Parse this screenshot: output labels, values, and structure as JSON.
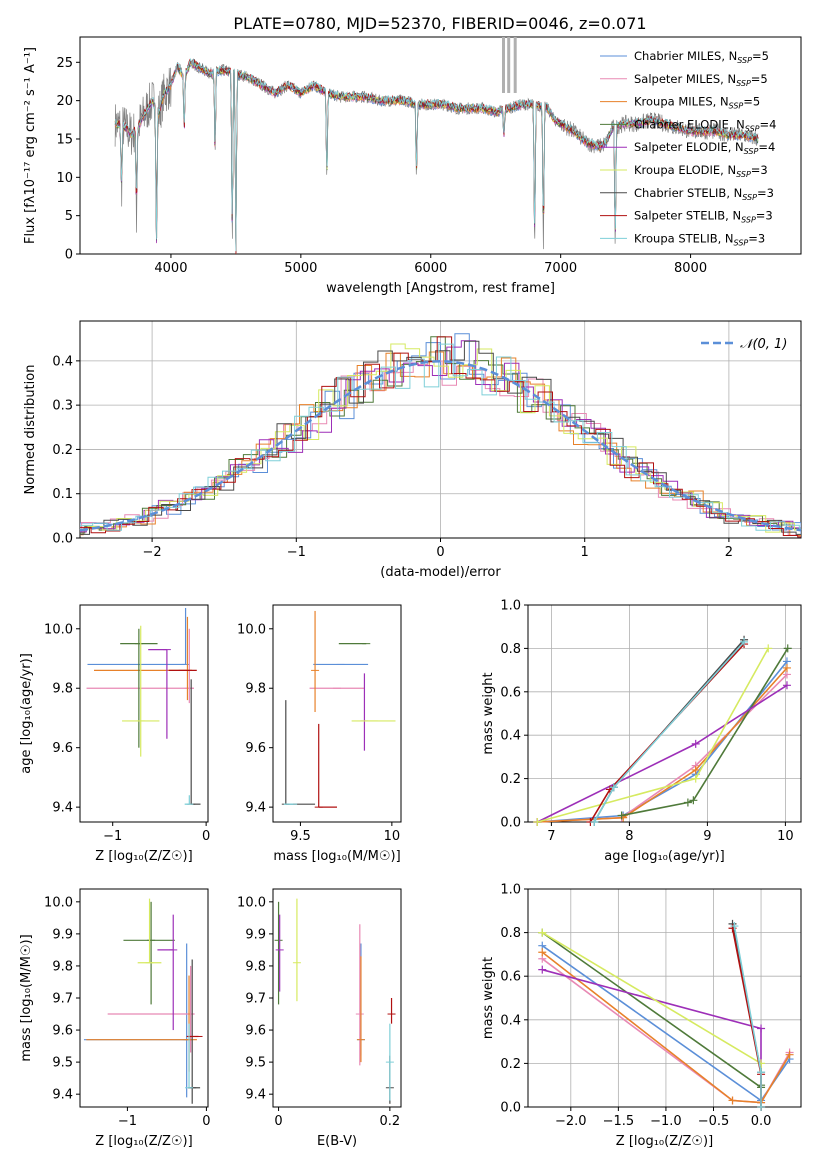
{
  "figure_title": "PLATE=0780, MJD=52370, FIBERID=0046, z=0.071",
  "colors": {
    "series": [
      "#5b8fd8",
      "#e889b4",
      "#e7812a",
      "#4f7a3a",
      "#9d2fb8",
      "#d6ea60",
      "#4a4a4a",
      "#b01010",
      "#7ecfd8"
    ],
    "data": "#808080",
    "gaussian": "#5b8fd8",
    "grid": "#b0b0b0"
  },
  "chart_data": [
    {
      "id": "spectrum",
      "type": "line",
      "title": "PLATE=0780, MJD=52370, FIBERID=0046, z=0.071",
      "xlabel": "wavelength [Angstrom, rest frame]",
      "ylabel": "Flux [fλ10⁻¹⁷ erg cm⁻² s⁻¹ A⁻¹]",
      "xlim": [
        3300,
        8850
      ],
      "ylim": [
        0,
        28.3
      ],
      "xticks": [
        4000,
        5000,
        6000,
        7000,
        8000
      ],
      "yticks": [
        0,
        5,
        10,
        15,
        20,
        25
      ],
      "grid": false,
      "legend_position": "top-right",
      "legend": [
        {
          "label": "Chabrier MILES, N",
          "sub": "SSP",
          "tail": "=5"
        },
        {
          "label": "Salpeter MILES, N",
          "sub": "SSP",
          "tail": "=5"
        },
        {
          "label": "Kroupa MILES, N",
          "sub": "SSP",
          "tail": "=5"
        },
        {
          "label": "Chabrier ELODIE, N",
          "sub": "SSP",
          "tail": "=4"
        },
        {
          "label": "Salpeter ELODIE, N",
          "sub": "SSP",
          "tail": "=4"
        },
        {
          "label": "Kroupa ELODIE, N",
          "sub": "SSP",
          "tail": "=3"
        },
        {
          "label": "Chabrier STELIB, N",
          "sub": "SSP",
          "tail": "=3"
        },
        {
          "label": "Salpeter STELIB, N",
          "sub": "SSP",
          "tail": "=3"
        },
        {
          "label": "Kroupa STELIB, N",
          "sub": "SSP",
          "tail": "=3"
        }
      ],
      "continuum": [
        [
          3570,
          17
        ],
        [
          3650,
          16.5
        ],
        [
          3700,
          15.5
        ],
        [
          3760,
          17
        ],
        [
          3820,
          19
        ],
        [
          3860,
          20
        ],
        [
          3900,
          18
        ],
        [
          3950,
          21
        ],
        [
          4000,
          22
        ],
        [
          4050,
          24.5
        ],
        [
          4100,
          23
        ],
        [
          4150,
          25
        ],
        [
          4200,
          24.5
        ],
        [
          4300,
          23.5
        ],
        [
          4400,
          24
        ],
        [
          4500,
          23.5
        ],
        [
          4600,
          23
        ],
        [
          4700,
          22
        ],
        [
          4800,
          21
        ],
        [
          4900,
          22
        ],
        [
          5000,
          21
        ],
        [
          5100,
          22
        ],
        [
          5200,
          21
        ],
        [
          5300,
          20.5
        ],
        [
          5400,
          20.5
        ],
        [
          5500,
          20.5
        ],
        [
          5600,
          20
        ],
        [
          5700,
          20
        ],
        [
          5800,
          20
        ],
        [
          5900,
          19.5
        ],
        [
          6000,
          19.5
        ],
        [
          6100,
          19.5
        ],
        [
          6200,
          19
        ],
        [
          6300,
          19
        ],
        [
          6400,
          19
        ],
        [
          6500,
          18.5
        ],
        [
          6600,
          19
        ],
        [
          6700,
          19.5
        ],
        [
          6800,
          19.5
        ],
        [
          6900,
          19
        ],
        [
          6950,
          17.5
        ],
        [
          7000,
          17
        ],
        [
          7100,
          16
        ],
        [
          7200,
          14.5
        ],
        [
          7300,
          14
        ],
        [
          7350,
          14.5
        ],
        [
          7400,
          16.5
        ],
        [
          7500,
          17
        ],
        [
          7600,
          17
        ],
        [
          7700,
          17.5
        ],
        [
          7800,
          17
        ],
        [
          7900,
          16.5
        ],
        [
          8000,
          16
        ],
        [
          8100,
          16
        ],
        [
          8200,
          16
        ],
        [
          8300,
          15.5
        ],
        [
          8400,
          15.5
        ],
        [
          8520,
          15
        ]
      ],
      "absorption_lines": [
        [
          3550,
          13
        ],
        [
          3620,
          8
        ],
        [
          3735,
          4.8
        ],
        [
          3889,
          0
        ],
        [
          4102,
          15
        ],
        [
          4340,
          12
        ],
        [
          4472,
          0
        ],
        [
          4500,
          0
        ],
        [
          5200,
          9
        ],
        [
          5890,
          9.5
        ],
        [
          6563,
          15
        ],
        [
          6800,
          0
        ],
        [
          6867,
          0
        ],
        [
          7420,
          0
        ]
      ],
      "sky_lines": [
        6560,
        6600,
        6650
      ]
    },
    {
      "id": "residuals",
      "type": "step-histogram",
      "xlabel": "(data-model)/error",
      "ylabel": "Normed distribution",
      "xlim": [
        -2.5,
        2.5
      ],
      "ylim": [
        0,
        0.49
      ],
      "xticks": [
        -2,
        -1,
        0,
        1,
        2
      ],
      "yticks": [
        0,
        0.1,
        0.2,
        0.3,
        0.4
      ],
      "grid": true,
      "legend_position": "top-right",
      "legend": "𝒩(0, 1)",
      "bin_width": 0.1
    },
    {
      "id": "age_vs_Z",
      "type": "errorbar",
      "xlabel": "Z [log₁₀(Z/Z☉)]",
      "ylabel": "age  [log₁₀(age/yr)]",
      "xlim": [
        -1.35,
        0.02
      ],
      "ylim": [
        9.35,
        10.08
      ],
      "xticks": [
        -1,
        0
      ],
      "yticks": [
        9.4,
        9.6,
        9.8,
        10.0
      ],
      "grid": false,
      "points": [
        {
          "x": -0.22,
          "y": 9.88,
          "xerr": [
            1.05,
            0.0
          ],
          "yerr": [
            0.0,
            0.19
          ]
        },
        {
          "x": -0.18,
          "y": 9.8,
          "xerr": [
            1.1,
            0.05
          ],
          "yerr": [
            0.05,
            0.2
          ]
        },
        {
          "x": -0.2,
          "y": 9.86,
          "xerr": [
            1.0,
            0.05
          ],
          "yerr": [
            0.1,
            0.18
          ]
        },
        {
          "x": -0.72,
          "y": 9.95,
          "xerr": [
            0.2,
            0.2
          ],
          "yerr": [
            0.35,
            0.05
          ]
        },
        {
          "x": -0.42,
          "y": 9.93,
          "xerr": [
            0.2,
            0.0
          ],
          "yerr": [
            0.3,
            0.0
          ]
        },
        {
          "x": -0.7,
          "y": 9.69,
          "xerr": [
            0.2,
            0.2
          ],
          "yerr": [
            0.12,
            0.32
          ]
        },
        {
          "x": -0.16,
          "y": 9.41,
          "xerr": [
            0.0,
            0.1
          ],
          "yerr": [
            0.0,
            0.42
          ]
        },
        {
          "x": -0.25,
          "y": 9.86,
          "xerr": [
            0.15,
            0.15
          ],
          "yerr": [
            0.0,
            0.0
          ]
        },
        {
          "x": -0.18,
          "y": 9.41,
          "xerr": [
            0.05,
            0.0
          ],
          "yerr": [
            0.0,
            0.03
          ]
        }
      ]
    },
    {
      "id": "age_vs_mass",
      "type": "errorbar",
      "xlabel": "mass [log₁₀(M/M☉)]",
      "ylabel": "",
      "xlim": [
        9.35,
        10.05
      ],
      "ylim": [
        9.35,
        10.08
      ],
      "xticks": [
        9.5,
        10.0
      ],
      "yticks": [
        9.4,
        9.6,
        9.8,
        10.0
      ],
      "grid": false,
      "points": [
        {
          "x": 9.72,
          "y": 9.88,
          "xerr": [
            0.15,
            0.15
          ],
          "yerr": [
            0.0,
            0.0
          ]
        },
        {
          "x": 9.7,
          "y": 9.8,
          "xerr": [
            0.15,
            0.15
          ],
          "yerr": [
            0.0,
            0.0
          ]
        },
        {
          "x": 9.58,
          "y": 9.86,
          "xerr": [
            0.0,
            0.0
          ],
          "yerr": [
            0.14,
            0.2
          ]
        },
        {
          "x": 9.86,
          "y": 9.95,
          "xerr": [
            0.15,
            0.0
          ],
          "yerr": [
            0.0,
            0.0
          ]
        },
        {
          "x": 9.85,
          "y": 9.69,
          "xerr": [
            0.0,
            0.0
          ],
          "yerr": [
            0.1,
            0.16
          ]
        },
        {
          "x": 9.9,
          "y": 9.69,
          "xerr": [
            0.12,
            0.12
          ],
          "yerr": [
            0.0,
            0.0
          ]
        },
        {
          "x": 9.42,
          "y": 9.41,
          "xerr": [
            0.0,
            0.16
          ],
          "yerr": [
            0.0,
            0.35
          ]
        },
        {
          "x": 9.6,
          "y": 9.4,
          "xerr": [
            0.0,
            0.1
          ],
          "yerr": [
            0.0,
            0.28
          ]
        },
        {
          "x": 9.46,
          "y": 9.41,
          "xerr": [
            0.05,
            0.0
          ],
          "yerr": [
            0.0,
            0.0
          ]
        }
      ]
    },
    {
      "id": "weight_vs_age",
      "type": "line",
      "xlabel": "age  [log₁₀(age/yr)]",
      "ylabel": "mass weight",
      "xlim": [
        6.7,
        10.2
      ],
      "ylim": [
        0,
        1.0
      ],
      "xticks": [
        7,
        8,
        9,
        10
      ],
      "yticks": [
        0,
        0.2,
        0.4,
        0.6,
        0.8,
        1.0
      ],
      "grid": true,
      "series": [
        {
          "x": [
            6.82,
            7.92,
            8.85,
            10.02
          ],
          "y": [
            0.0,
            0.03,
            0.22,
            0.74
          ]
        },
        {
          "x": [
            6.82,
            7.9,
            8.85,
            10.02
          ],
          "y": [
            0.0,
            0.02,
            0.26,
            0.68
          ]
        },
        {
          "x": [
            6.82,
            7.92,
            8.85,
            10.02
          ],
          "y": [
            0.0,
            0.02,
            0.24,
            0.71
          ]
        },
        {
          "x": [
            7.9,
            8.75,
            8.82,
            10.03
          ],
          "y": [
            0.03,
            0.09,
            0.1,
            0.8
          ]
        },
        {
          "x": [
            6.82,
            8.85,
            10.02
          ],
          "y": [
            0.0,
            0.36,
            0.63
          ]
        },
        {
          "x": [
            6.82,
            8.85,
            9.78
          ],
          "y": [
            0.0,
            0.2,
            0.8
          ]
        },
        {
          "x": [
            7.55,
            7.8,
            9.47
          ],
          "y": [
            0.0,
            0.16,
            0.84
          ]
        },
        {
          "x": [
            7.5,
            7.75,
            9.47
          ],
          "y": [
            0.0,
            0.15,
            0.82
          ]
        },
        {
          "x": [
            7.55,
            7.8,
            9.47
          ],
          "y": [
            0.0,
            0.16,
            0.83
          ]
        }
      ]
    },
    {
      "id": "mass_vs_Z",
      "type": "errorbar",
      "xlabel": "Z [log₁₀(Z/Z☉)]",
      "ylabel": "mass [log₁₀(M/M☉)]",
      "xlim": [
        -1.6,
        0.02
      ],
      "ylim": [
        9.36,
        10.04
      ],
      "xticks": [
        -1,
        0
      ],
      "yticks": [
        9.4,
        9.5,
        9.6,
        9.7,
        9.8,
        9.9,
        10.0
      ],
      "grid": false,
      "points": [
        {
          "x": -0.25,
          "y": 9.57,
          "xerr": [
            1.3,
            0.0
          ],
          "yerr": [
            0.18,
            0.3
          ]
        },
        {
          "x": -0.2,
          "y": 9.65,
          "xerr": [
            1.05,
            0.05
          ],
          "yerr": [
            0.12,
            0.15
          ]
        },
        {
          "x": -0.22,
          "y": 9.57,
          "xerr": [
            1.3,
            0.1
          ],
          "yerr": [
            0.1,
            0.2
          ]
        },
        {
          "x": -0.7,
          "y": 9.88,
          "xerr": [
            0.35,
            0.3
          ],
          "yerr": [
            0.2,
            0.12
          ]
        },
        {
          "x": -0.42,
          "y": 9.85,
          "xerr": [
            0.2,
            0.0
          ],
          "yerr": [
            0.25,
            0.11
          ]
        },
        {
          "x": -0.72,
          "y": 9.81,
          "xerr": [
            0.15,
            0.15
          ],
          "yerr": [
            0.0,
            0.2
          ]
        },
        {
          "x": -0.18,
          "y": 9.42,
          "xerr": [
            0.05,
            0.1
          ],
          "yerr": [
            0.05,
            0.4
          ]
        },
        {
          "x": -0.1,
          "y": 9.58,
          "xerr": [
            0.15,
            0.0
          ],
          "yerr": [
            0.0,
            0.0
          ]
        },
        {
          "x": -0.22,
          "y": 9.42,
          "xerr": [
            0.0,
            0.0
          ],
          "yerr": [
            0.0,
            0.2
          ]
        }
      ]
    },
    {
      "id": "mass_vs_ebv",
      "type": "errorbar",
      "xlabel": "E(B-V)",
      "ylabel": "",
      "xlim": [
        -0.01,
        0.22
      ],
      "ylim": [
        9.36,
        10.04
      ],
      "xticks": [
        0.0,
        0.2
      ],
      "yticks": [
        9.4,
        9.5,
        9.6,
        9.7,
        9.8,
        9.9,
        10.0
      ],
      "grid": false,
      "points": [
        {
          "x": 0.148,
          "y": 9.57,
          "xerr": [
            0,
            0
          ],
          "yerr": [
            0.05,
            0.3
          ]
        },
        {
          "x": 0.146,
          "y": 9.65,
          "xerr": [
            0,
            0
          ],
          "yerr": [
            0.16,
            0.28
          ]
        },
        {
          "x": 0.148,
          "y": 9.57,
          "xerr": [
            0,
            0
          ],
          "yerr": [
            0.07,
            0.26
          ]
        },
        {
          "x": 0.0,
          "y": 9.88,
          "xerr": [
            0,
            0
          ],
          "yerr": [
            0.2,
            0.12
          ]
        },
        {
          "x": 0.002,
          "y": 9.85,
          "xerr": [
            0,
            0
          ],
          "yerr": [
            0.13,
            0.11
          ]
        },
        {
          "x": 0.033,
          "y": 9.81,
          "xerr": [
            0,
            0
          ],
          "yerr": [
            0.12,
            0.2
          ]
        },
        {
          "x": 0.2,
          "y": 9.42,
          "xerr": [
            0,
            0
          ],
          "yerr": [
            0.05,
            0.1
          ]
        },
        {
          "x": 0.203,
          "y": 9.65,
          "xerr": [
            0,
            0
          ],
          "yerr": [
            0.03,
            0.05
          ]
        },
        {
          "x": 0.2,
          "y": 9.5,
          "xerr": [
            0,
            0
          ],
          "yerr": [
            0.12,
            0.12
          ]
        }
      ]
    },
    {
      "id": "weight_vs_Z",
      "type": "line",
      "xlabel": "Z [log₁₀(Z/Z☉)]",
      "ylabel": "mass weight",
      "xlim": [
        -2.45,
        0.42
      ],
      "ylim": [
        0,
        1.0
      ],
      "xticks": [
        -2.0,
        -1.5,
        -1.0,
        -0.5,
        0.0
      ],
      "yticks": [
        0,
        0.2,
        0.4,
        0.6,
        0.8,
        1.0
      ],
      "grid": true,
      "series": [
        {
          "x": [
            -2.3,
            0.0,
            0.3
          ],
          "y": [
            0.74,
            0.03,
            0.22
          ]
        },
        {
          "x": [
            -2.3,
            -0.3,
            0.0,
            0.3
          ],
          "y": [
            0.68,
            0.03,
            0.02,
            0.25
          ]
        },
        {
          "x": [
            -2.3,
            -0.3,
            0.0,
            0.3
          ],
          "y": [
            0.71,
            0.03,
            0.02,
            0.24
          ]
        },
        {
          "x": [
            -2.3,
            0.0,
            0.0
          ],
          "y": [
            0.8,
            0.09,
            0.1
          ]
        },
        {
          "x": [
            -2.3,
            0.0,
            0.0
          ],
          "y": [
            0.63,
            0.36,
            0.0
          ]
        },
        {
          "x": [
            -2.3,
            0.0,
            0.0
          ],
          "y": [
            0.8,
            0.2,
            0.0
          ]
        },
        {
          "x": [
            -0.3,
            0.0,
            0.0
          ],
          "y": [
            0.84,
            0.16,
            0.0
          ]
        },
        {
          "x": [
            -0.3,
            0.0,
            0.0
          ],
          "y": [
            0.82,
            0.15,
            0.0
          ]
        },
        {
          "x": [
            -0.28,
            0.0,
            0.0
          ],
          "y": [
            0.83,
            0.16,
            0.0
          ]
        }
      ]
    }
  ]
}
